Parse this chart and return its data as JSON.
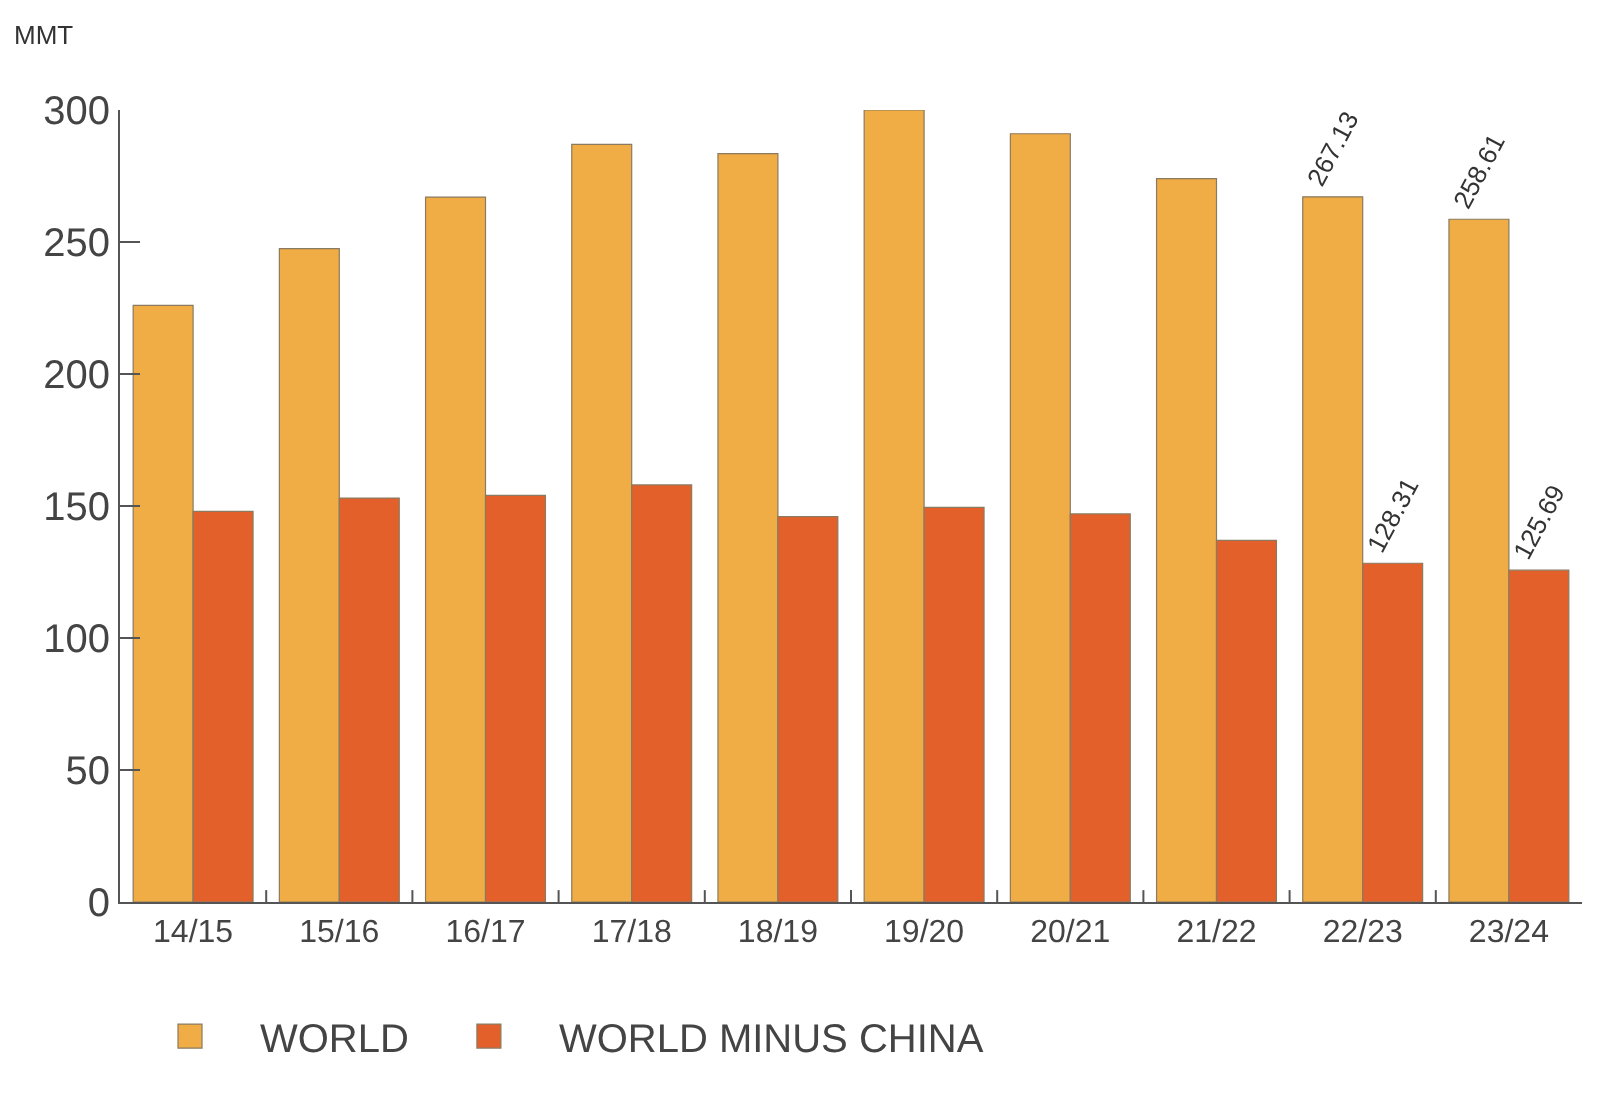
{
  "chart_data": {
    "type": "bar",
    "ylabel": "MMT",
    "categories": [
      "14/15",
      "15/16",
      "16/17",
      "17/18",
      "18/19",
      "19/20",
      "20/21",
      "21/22",
      "22/23",
      "23/24"
    ],
    "series": [
      {
        "name": "WORLD",
        "color": "#f0ad45",
        "values": [
          226,
          247.5,
          267,
          287,
          283.5,
          300,
          291,
          274,
          267.13,
          258.61
        ],
        "value_labels": [
          null,
          null,
          null,
          null,
          null,
          null,
          null,
          null,
          "267.13",
          "258.61"
        ]
      },
      {
        "name": "WORLD MINUS CHINA",
        "color": "#e4602a",
        "values": [
          148,
          153,
          154,
          158,
          146,
          149.5,
          147,
          137,
          128.31,
          125.69
        ],
        "value_labels": [
          null,
          null,
          null,
          null,
          null,
          null,
          null,
          null,
          "128.31",
          "125.69"
        ]
      }
    ],
    "ylim": [
      0,
      300
    ],
    "yticks": [
      0,
      50,
      100,
      150,
      200,
      250,
      300
    ],
    "legend": "bottom"
  }
}
